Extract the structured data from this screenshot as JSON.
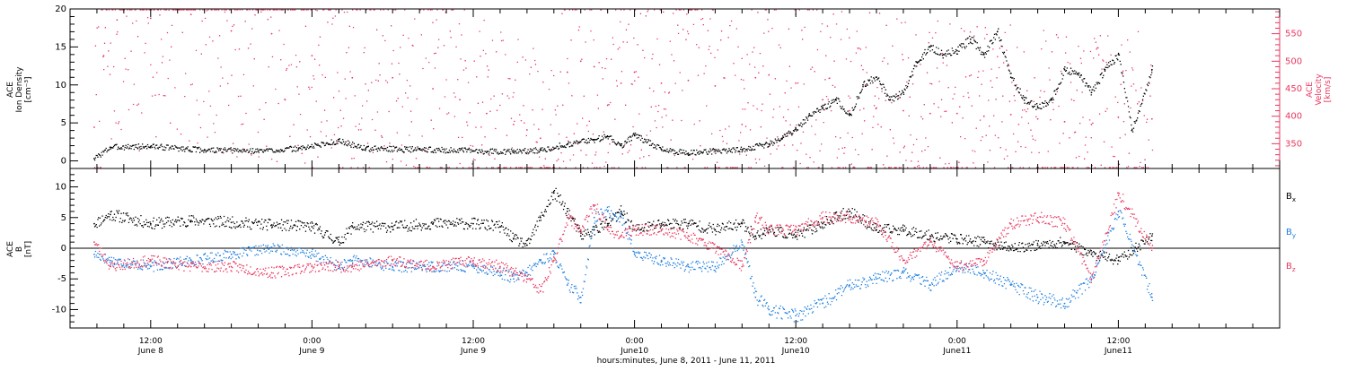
{
  "colors": {
    "black": "#000000",
    "pink": "#e8375f",
    "blue": "#1f7fe0",
    "axis": "#000000"
  },
  "x_axis": {
    "range_hours": [
      -6,
      84
    ],
    "ticks": [
      {
        "hour": 0,
        "time": "12:00",
        "date": "June 8"
      },
      {
        "hour": 12,
        "time": "0:00",
        "date": "June 9"
      },
      {
        "hour": 24,
        "time": "12:00",
        "date": "June 9"
      },
      {
        "hour": 36,
        "time": "0:00",
        "date": "June10"
      },
      {
        "hour": 48,
        "time": "12:00",
        "date": "June10"
      },
      {
        "hour": 60,
        "time": "0:00",
        "date": "June11"
      },
      {
        "hour": 72,
        "time": "12:00",
        "date": "June11"
      }
    ],
    "label": "hours:minutes, June  8, 2011 - June 11, 2011"
  },
  "panel_top": {
    "ylabel_left": [
      "ACE",
      "Ion Density",
      "[cm⁻³]"
    ],
    "ylabel_right": [
      "ACE",
      "Velocity",
      "[km/s]"
    ],
    "ylim_left": [
      -1,
      20
    ],
    "ylim_right": [
      305,
      595
    ],
    "left_ticks": [
      "0",
      "5",
      "10",
      "15",
      "20"
    ],
    "left_tick_values": [
      0,
      5,
      10,
      15,
      20
    ],
    "right_ticks": [
      "350",
      "400",
      "450",
      "500",
      "550"
    ],
    "right_tick_values": [
      350,
      400,
      450,
      500,
      550
    ]
  },
  "panel_bottom": {
    "ylabel_left": [
      "ACE",
      "B",
      "[nT]"
    ],
    "ylim": [
      -13,
      13
    ],
    "ticks": [
      "-10",
      "-5",
      "0",
      "5",
      "10"
    ],
    "tick_values": [
      -10,
      -5,
      0,
      5,
      10
    ],
    "legend": [
      {
        "label": "B",
        "sub": "x",
        "color": "#000000"
      },
      {
        "label": "B",
        "sub": "y",
        "color": "#1f7fe0"
      },
      {
        "label": "B",
        "sub": "z",
        "color": "#e8375f"
      }
    ]
  },
  "chart_data": [
    {
      "type": "scatter",
      "ylabel": "ACE Ion Density [cm⁻³]",
      "y2label": "ACE Velocity [km/s]",
      "xlabel": "hours:minutes, June  8, 2011 - June 11, 2011",
      "xlim": [
        -6,
        84
      ],
      "ylim": [
        -1,
        20
      ],
      "y2lim": [
        305,
        595
      ],
      "grid": false,
      "series": [
        {
          "axis": "left",
          "color": "#000000",
          "x": [
            -4.2,
            -3,
            0,
            4,
            8,
            11,
            14,
            16,
            20,
            24,
            27,
            29,
            31,
            33,
            34,
            35,
            36,
            38,
            40,
            42,
            44,
            46,
            47,
            48,
            49,
            50,
            51,
            52,
            53,
            54,
            55,
            56,
            57,
            58,
            59,
            60,
            61,
            62,
            63,
            64,
            65,
            66,
            67,
            68,
            69,
            70,
            71,
            72,
            73,
            74.5
          ],
          "y": [
            0.3,
            1.8,
            1.9,
            1.4,
            1.3,
            1.6,
            2.6,
            1.6,
            1.5,
            1.3,
            1.2,
            1.4,
            2.2,
            2.8,
            3.2,
            2.0,
            3.4,
            1.5,
            1.0,
            1.3,
            1.5,
            2.2,
            3.0,
            4.2,
            6.0,
            7.0,
            8.0,
            6.0,
            10.0,
            11.0,
            8.0,
            9.0,
            13.0,
            15.0,
            14.0,
            14.5,
            16.0,
            14.0,
            17.0,
            11.0,
            8.0,
            7.0,
            8.0,
            12.0,
            11.5,
            9.0,
            12.0,
            14.0,
            4.0,
            12.0
          ]
        },
        {
          "axis": "right",
          "color": "#e8375f",
          "x": [
            -4.2,
            -3.5,
            -2.5,
            0,
            3,
            6,
            9,
            12,
            15,
            18,
            21,
            23,
            25,
            27,
            28,
            29,
            30,
            31,
            32,
            33,
            34,
            35,
            36,
            38,
            40,
            42,
            44,
            45,
            46,
            48,
            50,
            52,
            54,
            56,
            58,
            60,
            62,
            64,
            66,
            68,
            70,
            72,
            74.5
          ],
          "y": [
            380,
            510,
            575,
            578,
            585,
            555,
            550,
            510,
            470,
            470,
            450,
            430,
            405,
            385,
            375,
            360,
            340,
            480,
            500,
            490,
            420,
            460,
            480,
            460,
            465,
            455,
            385,
            470,
            475,
            460,
            430,
            410,
            415,
            410,
            405,
            405,
            400,
            403,
            395,
            390,
            385,
            398,
            395
          ]
        }
      ]
    },
    {
      "type": "scatter",
      "ylabel": "ACE B [nT]",
      "xlabel": "hours:minutes, June  8, 2011 - June 11, 2011",
      "xlim": [
        -6,
        84
      ],
      "ylim": [
        -13,
        13
      ],
      "grid": false,
      "series": [
        {
          "name": "Bx",
          "color": "#000000",
          "x": [
            -4.2,
            -3,
            0,
            3,
            6,
            9,
            12,
            14,
            15,
            18,
            21,
            24,
            26,
            27,
            28,
            29,
            30,
            31,
            32,
            33,
            34,
            35,
            36,
            38,
            40,
            42,
            44,
            45,
            46,
            48,
            50,
            52,
            54,
            56,
            58,
            60,
            62,
            64,
            66,
            68,
            70,
            72,
            74.5
          ],
          "y": [
            4,
            5.5,
            4,
            4.5,
            4.2,
            3.8,
            3.5,
            1,
            3.5,
            3.5,
            4,
            4,
            3.5,
            1.5,
            0.5,
            5,
            9,
            6,
            2,
            3,
            4,
            6,
            3,
            4,
            4,
            3,
            4,
            2,
            3,
            2,
            4,
            6,
            3,
            3,
            2,
            1.5,
            1,
            0,
            0.5,
            1,
            -1,
            -2,
            2
          ]
        },
        {
          "name": "By",
          "color": "#1f7fe0",
          "x": [
            -4.2,
            -3,
            0,
            3,
            6,
            9,
            12,
            14,
            15,
            18,
            21,
            24,
            26,
            27,
            28,
            29,
            30,
            31,
            32,
            33,
            34,
            35,
            36,
            38,
            40,
            42,
            44,
            45,
            46,
            48,
            50,
            52,
            54,
            56,
            58,
            60,
            62,
            64,
            66,
            68,
            70,
            72,
            74.5
          ],
          "y": [
            -1,
            -2,
            -3,
            -2,
            -1,
            0,
            -1,
            -3,
            -2,
            -3,
            -3,
            -3,
            -4,
            -5,
            -4,
            -2,
            -1,
            -6,
            -8,
            5,
            6,
            5,
            -1,
            -2,
            -3,
            -3,
            1,
            -8,
            -10,
            -11,
            -9,
            -6,
            -5,
            -4,
            -6,
            -3,
            -4,
            -6,
            -8,
            -9,
            -5,
            6,
            -8
          ]
        },
        {
          "name": "Bz",
          "color": "#e8375f",
          "x": [
            -4.2,
            -3,
            0,
            3,
            6,
            9,
            12,
            14,
            15,
            18,
            21,
            24,
            26,
            27,
            28,
            29,
            30,
            31,
            32,
            33,
            34,
            35,
            36,
            38,
            40,
            42,
            44,
            45,
            46,
            48,
            50,
            52,
            54,
            56,
            58,
            60,
            62,
            64,
            66,
            68,
            70,
            72,
            74.5
          ],
          "y": [
            1,
            -3,
            -2,
            -3,
            -3,
            -4,
            -3,
            -3,
            -3,
            -2,
            -3,
            -2,
            -3,
            -4,
            -5,
            -7,
            -2,
            5,
            3,
            7,
            3,
            2,
            3,
            3,
            2,
            0,
            -3,
            5,
            3,
            3,
            5,
            5,
            4,
            -2,
            1,
            -3,
            -2,
            4,
            5,
            4,
            -5,
            9,
            0
          ]
        }
      ]
    }
  ]
}
